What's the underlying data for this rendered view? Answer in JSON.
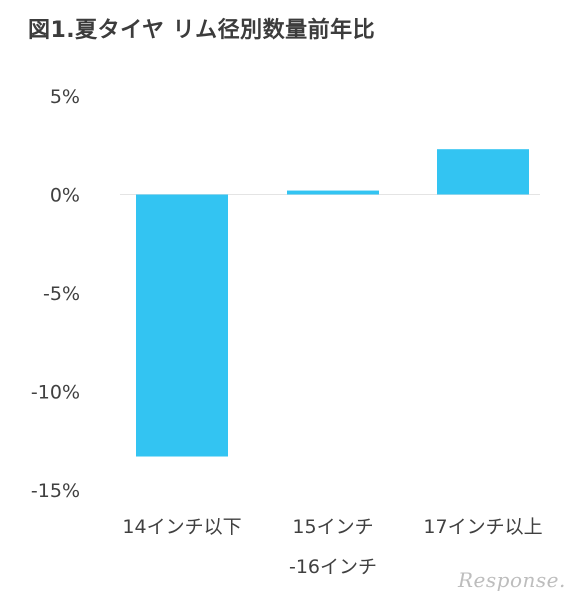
{
  "chart_data": {
    "type": "bar",
    "title": "図1.夏タイヤ リム径別数量前年比",
    "categories": [
      [
        "14インチ以下"
      ],
      [
        "15インチ",
        "-16インチ"
      ],
      [
        "17インチ以上"
      ]
    ],
    "values": [
      -13.3,
      0.2,
      2.3
    ],
    "ylim": [
      -15,
      5
    ],
    "yticks": [
      5,
      0,
      -5,
      -10,
      -15
    ],
    "ytick_labels": [
      "5%",
      "0%",
      "-5%",
      "-10%",
      "-15%"
    ],
    "grid": false,
    "legend": "none",
    "colors": {
      "bar": "#33c4f2",
      "baseline": "#e4e4e4"
    }
  },
  "watermark": "Response."
}
